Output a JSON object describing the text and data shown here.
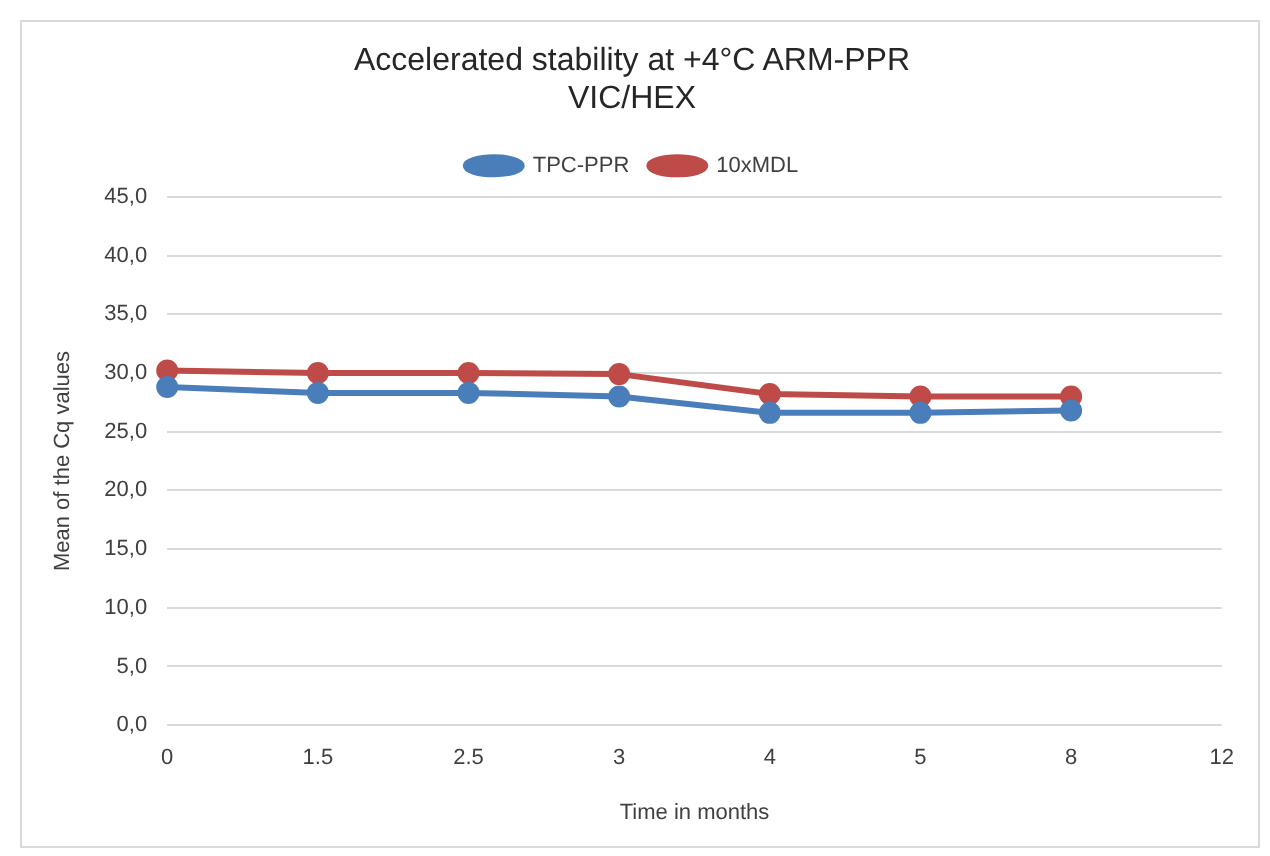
{
  "chart_data": {
    "type": "line",
    "title": [
      "Accelerated stability at +4°C ARM-PPR",
      "VIC/HEX"
    ],
    "xlabel": "Time in months",
    "ylabel": "Mean of the Cq values",
    "categories": [
      "0",
      "1.5",
      "2.5",
      "3",
      "4",
      "5",
      "8",
      "12"
    ],
    "series": [
      {
        "name": "TPC-PPR",
        "color": "#4a7ebb",
        "values": [
          28.8,
          28.3,
          28.3,
          28.0,
          26.6,
          26.6,
          26.8,
          null
        ]
      },
      {
        "name": "10xMDL",
        "color": "#be4b48",
        "values": [
          30.2,
          30.0,
          30.0,
          29.9,
          28.2,
          28.0,
          28.0,
          null
        ]
      }
    ],
    "ylim": [
      0,
      45
    ],
    "yticks": [
      {
        "value": 0,
        "label": "0,0"
      },
      {
        "value": 5,
        "label": "5,0"
      },
      {
        "value": 10,
        "label": "10,0"
      },
      {
        "value": 15,
        "label": "15,0"
      },
      {
        "value": 20,
        "label": "20,0"
      },
      {
        "value": 25,
        "label": "25,0"
      },
      {
        "value": 30,
        "label": "30,0"
      },
      {
        "value": 35,
        "label": "35,0"
      },
      {
        "value": 40,
        "label": "40,0"
      },
      {
        "value": 45,
        "label": "45,0"
      }
    ],
    "grid": "y",
    "legend": "top",
    "marker": "circle",
    "line_style": "solid"
  }
}
